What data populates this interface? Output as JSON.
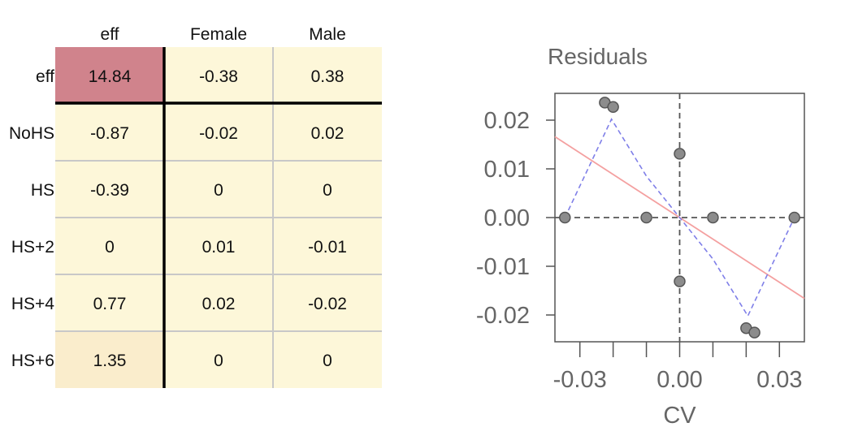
{
  "table": {
    "col_headers": [
      "eff",
      "Female",
      "Male"
    ],
    "row_headers": [
      "eff",
      "NoHS",
      "HS",
      "HS+2",
      "HS+4",
      "HS+6"
    ],
    "cells": [
      [
        "14.84",
        "-0.38",
        "0.38"
      ],
      [
        "-0.87",
        "-0.02",
        "0.02"
      ],
      [
        "-0.39",
        "0",
        "0"
      ],
      [
        "0",
        "0.01",
        "-0.01"
      ],
      [
        "0.77",
        "0.02",
        "-0.02"
      ],
      [
        "1.35",
        "0",
        "0"
      ]
    ],
    "colors": {
      "default": "#fdf7d9",
      "eff": "#d0838c",
      "hs6": "#faedcc",
      "grid": "#c8c8c8",
      "divider": "#000000"
    }
  },
  "chart_data": {
    "type": "scatter",
    "title": "Residuals",
    "xlabel": "CV",
    "ylabel": "",
    "xlim": [
      -0.0375,
      0.0375
    ],
    "ylim": [
      -0.0255,
      0.0255
    ],
    "xticks": [
      -0.03,
      -0.02,
      -0.01,
      0.0,
      0.01,
      0.02,
      0.03
    ],
    "xtick_labels": [
      "-0.03",
      "0.00",
      "0.03"
    ],
    "xtick_label_values": [
      -0.03,
      0.0,
      0.03
    ],
    "yticks": [
      -0.02,
      -0.01,
      0.0,
      0.01,
      0.02
    ],
    "ytick_labels": [
      "-0.02",
      "-0.01",
      "0.00",
      "0.01",
      "0.02"
    ],
    "points": [
      {
        "x": -0.0345,
        "y": 0.0
      },
      {
        "x": -0.0225,
        "y": 0.0236
      },
      {
        "x": -0.02,
        "y": 0.0227
      },
      {
        "x": -0.01,
        "y": 0.0
      },
      {
        "x": 0.0,
        "y": 0.0131
      },
      {
        "x": 0.0,
        "y": -0.0131
      },
      {
        "x": 0.01,
        "y": 0.0
      },
      {
        "x": 0.02,
        "y": -0.0227
      },
      {
        "x": 0.0225,
        "y": -0.0236
      },
      {
        "x": 0.0345,
        "y": 0.0
      }
    ],
    "fit_line": [
      {
        "x": -0.0375,
        "y": 0.0166
      },
      {
        "x": 0.0375,
        "y": -0.0166
      }
    ],
    "smooth_line": [
      {
        "x": -0.0345,
        "y": 0.0
      },
      {
        "x": -0.0205,
        "y": 0.0202
      },
      {
        "x": -0.01,
        "y": 0.0085
      },
      {
        "x": 0.0,
        "y": 0.0
      },
      {
        "x": 0.01,
        "y": -0.0085
      },
      {
        "x": 0.0205,
        "y": -0.0202
      },
      {
        "x": 0.0345,
        "y": 0.0
      }
    ],
    "zero_lines": {
      "x": 0.0,
      "y": 0.0
    },
    "grid": false,
    "colors": {
      "points_fill": "#8c8c8c",
      "points_stroke": "#555555",
      "fit_line": "#f4a0a0",
      "smooth_line": "#7f7fe8",
      "zero_line": "#555555",
      "axis": "#555555",
      "text": "#666666"
    }
  }
}
